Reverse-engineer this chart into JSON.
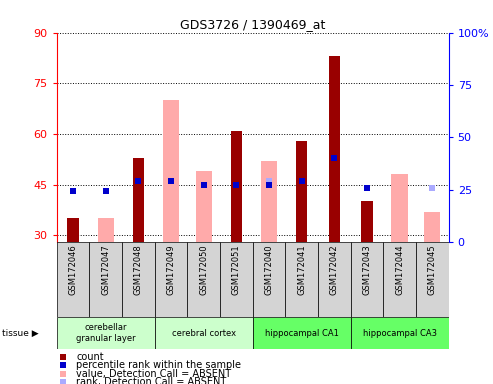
{
  "title": "GDS3726 / 1390469_at",
  "samples": [
    "GSM172046",
    "GSM172047",
    "GSM172048",
    "GSM172049",
    "GSM172050",
    "GSM172051",
    "GSM172040",
    "GSM172041",
    "GSM172042",
    "GSM172043",
    "GSM172044",
    "GSM172045"
  ],
  "tissues": [
    {
      "name": "cerebellar\ngranular layer",
      "start": 0,
      "end": 3,
      "color": "#ccffcc"
    },
    {
      "name": "cerebral cortex",
      "start": 3,
      "end": 6,
      "color": "#ccffcc"
    },
    {
      "name": "hippocampal CA1",
      "start": 6,
      "end": 9,
      "color": "#66ff66"
    },
    {
      "name": "hippocampal CA3",
      "start": 9,
      "end": 12,
      "color": "#66ff66"
    }
  ],
  "count": [
    35,
    null,
    53,
    null,
    null,
    61,
    null,
    58,
    83,
    40,
    null,
    null
  ],
  "percentile_rank_left": [
    43,
    43,
    46,
    46,
    45,
    45,
    45,
    46,
    53,
    44,
    null,
    null
  ],
  "absent_value": [
    null,
    35,
    null,
    70,
    49,
    null,
    52,
    null,
    null,
    null,
    48,
    37
  ],
  "absent_rank_left": [
    null,
    43,
    null,
    46,
    null,
    null,
    46,
    null,
    null,
    null,
    null,
    44
  ],
  "ylim_left": [
    28,
    90
  ],
  "ylim_right": [
    0,
    100
  ],
  "yticks_left": [
    30,
    45,
    60,
    75,
    90
  ],
  "yticks_right": [
    0,
    25,
    50,
    75,
    100
  ],
  "bar_width": 0.35,
  "absent_bar_width": 0.5,
  "count_color": "#990000",
  "rank_color": "#0000cc",
  "absent_value_color": "#ffaaaa",
  "absent_rank_color": "#aaaaff",
  "legend_items": [
    {
      "color": "#990000",
      "label": "count"
    },
    {
      "color": "#0000cc",
      "label": "percentile rank within the sample"
    },
    {
      "color": "#ffaaaa",
      "label": "value, Detection Call = ABSENT"
    },
    {
      "color": "#aaaaff",
      "label": "rank, Detection Call = ABSENT"
    }
  ]
}
